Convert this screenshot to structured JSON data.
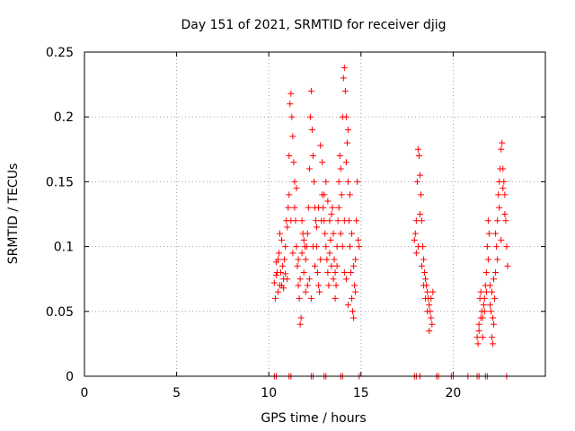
{
  "chart_data": {
    "type": "scatter",
    "title": "Day 151 of 2021, SRMTID for receiver djig",
    "xlabel": "GPS time / hours",
    "ylabel": "SRMTID / TECUs",
    "xlim": [
      0,
      25
    ],
    "ylim": [
      0,
      0.25
    ],
    "xticks": [
      0,
      5,
      10,
      15,
      20
    ],
    "xtick_labels": [
      "0",
      "5",
      "10",
      "15",
      "20"
    ],
    "yticks": [
      0,
      0.05,
      0.1,
      0.15,
      0.2,
      0.25
    ],
    "ytick_labels": [
      "0",
      "0.05",
      "0.1",
      "0.15",
      "0.2",
      "0.25"
    ],
    "grid": true,
    "marker": "+",
    "color": "#ff0000",
    "series": [
      {
        "name": "SRMTID",
        "points": [
          [
            10.3,
            0.072
          ],
          [
            10.35,
            0.06
          ],
          [
            10.4,
            0.078
          ],
          [
            10.45,
            0.08
          ],
          [
            10.5,
            0.065
          ],
          [
            10.55,
            0.095
          ],
          [
            10.6,
            0.11
          ],
          [
            10.65,
            0.08
          ],
          [
            10.7,
            0.07
          ],
          [
            10.75,
            0.085
          ],
          [
            10.8,
            0.075
          ],
          [
            10.85,
            0.09
          ],
          [
            10.9,
            0.1
          ],
          [
            10.95,
            0.12
          ],
          [
            10.4,
            0.088
          ],
          [
            10.5,
            0.09
          ],
          [
            10.6,
            0.07
          ],
          [
            10.7,
            0.105
          ],
          [
            10.8,
            0.068
          ],
          [
            10.9,
            0.079
          ],
          [
            11.0,
            0.115
          ],
          [
            11.05,
            0.13
          ],
          [
            11.1,
            0.17
          ],
          [
            11.15,
            0.21
          ],
          [
            11.2,
            0.218
          ],
          [
            11.25,
            0.2
          ],
          [
            11.3,
            0.185
          ],
          [
            11.35,
            0.165
          ],
          [
            11.4,
            0.15
          ],
          [
            11.45,
            0.12
          ],
          [
            11.5,
            0.1
          ],
          [
            11.55,
            0.085
          ],
          [
            11.6,
            0.07
          ],
          [
            11.65,
            0.06
          ],
          [
            11.7,
            0.04
          ],
          [
            11.75,
            0.045
          ],
          [
            11.8,
            0.095
          ],
          [
            11.85,
            0.11
          ],
          [
            11.9,
            0.105
          ],
          [
            11.95,
            0.1
          ],
          [
            11.1,
            0.14
          ],
          [
            11.2,
            0.12
          ],
          [
            11.3,
            0.095
          ],
          [
            11.4,
            0.13
          ],
          [
            11.5,
            0.145
          ],
          [
            11.6,
            0.09
          ],
          [
            11.7,
            0.075
          ],
          [
            11.8,
            0.12
          ],
          [
            11.9,
            0.08
          ],
          [
            11.0,
            0.075
          ],
          [
            12.0,
            0.09
          ],
          [
            12.05,
            0.1
          ],
          [
            12.1,
            0.11
          ],
          [
            12.15,
            0.13
          ],
          [
            12.2,
            0.16
          ],
          [
            12.25,
            0.2
          ],
          [
            12.3,
            0.22
          ],
          [
            12.35,
            0.19
          ],
          [
            12.4,
            0.17
          ],
          [
            12.45,
            0.15
          ],
          [
            12.5,
            0.13
          ],
          [
            12.55,
            0.12
          ],
          [
            12.6,
            0.1
          ],
          [
            12.65,
            0.08
          ],
          [
            12.7,
            0.07
          ],
          [
            12.75,
            0.065
          ],
          [
            12.8,
            0.09
          ],
          [
            12.85,
            0.12
          ],
          [
            12.9,
            0.14
          ],
          [
            12.95,
            0.13
          ],
          [
            12.2,
            0.075
          ],
          [
            12.3,
            0.06
          ],
          [
            12.4,
            0.1
          ],
          [
            12.5,
            0.085
          ],
          [
            12.6,
            0.115
          ],
          [
            12.7,
            0.13
          ],
          [
            12.8,
            0.178
          ],
          [
            12.9,
            0.165
          ],
          [
            12.1,
            0.07
          ],
          [
            12.0,
            0.065
          ],
          [
            13.0,
            0.12
          ],
          [
            13.05,
            0.11
          ],
          [
            13.1,
            0.1
          ],
          [
            13.15,
            0.09
          ],
          [
            13.2,
            0.08
          ],
          [
            13.25,
            0.07
          ],
          [
            13.3,
            0.095
          ],
          [
            13.35,
            0.105
          ],
          [
            13.4,
            0.125
          ],
          [
            13.45,
            0.13
          ],
          [
            13.5,
            0.11
          ],
          [
            13.55,
            0.09
          ],
          [
            13.6,
            0.08
          ],
          [
            13.65,
            0.07
          ],
          [
            13.7,
            0.1
          ],
          [
            13.75,
            0.12
          ],
          [
            13.8,
            0.15
          ],
          [
            13.85,
            0.17
          ],
          [
            13.9,
            0.16
          ],
          [
            13.95,
            0.14
          ],
          [
            13.1,
            0.15
          ],
          [
            13.2,
            0.135
          ],
          [
            13.3,
            0.12
          ],
          [
            13.4,
            0.085
          ],
          [
            13.5,
            0.075
          ],
          [
            13.6,
            0.06
          ],
          [
            13.7,
            0.085
          ],
          [
            13.8,
            0.13
          ],
          [
            13.9,
            0.11
          ],
          [
            13.0,
            0.14
          ],
          [
            14.0,
            0.2
          ],
          [
            14.05,
            0.23
          ],
          [
            14.1,
            0.238
          ],
          [
            14.15,
            0.22
          ],
          [
            14.2,
            0.2
          ],
          [
            14.25,
            0.18
          ],
          [
            14.3,
            0.15
          ],
          [
            14.35,
            0.12
          ],
          [
            14.4,
            0.1
          ],
          [
            14.45,
            0.08
          ],
          [
            14.5,
            0.06
          ],
          [
            14.55,
            0.05
          ],
          [
            14.6,
            0.045
          ],
          [
            14.65,
            0.07
          ],
          [
            14.7,
            0.09
          ],
          [
            14.75,
            0.12
          ],
          [
            14.8,
            0.15
          ],
          [
            14.85,
            0.105
          ],
          [
            14.9,
            0.1
          ],
          [
            14.1,
            0.12
          ],
          [
            14.2,
            0.165
          ],
          [
            14.3,
            0.19
          ],
          [
            14.4,
            0.14
          ],
          [
            14.5,
            0.11
          ],
          [
            14.6,
            0.085
          ],
          [
            14.7,
            0.065
          ],
          [
            14.0,
            0.1
          ],
          [
            14.1,
            0.08
          ],
          [
            14.2,
            0.075
          ],
          [
            14.3,
            0.055
          ],
          [
            17.9,
            0.105
          ],
          [
            17.95,
            0.11
          ],
          [
            18.0,
            0.12
          ],
          [
            18.05,
            0.15
          ],
          [
            18.1,
            0.175
          ],
          [
            18.15,
            0.17
          ],
          [
            18.2,
            0.155
          ],
          [
            18.25,
            0.14
          ],
          [
            18.3,
            0.12
          ],
          [
            18.35,
            0.1
          ],
          [
            18.4,
            0.09
          ],
          [
            18.45,
            0.08
          ],
          [
            18.5,
            0.075
          ],
          [
            18.55,
            0.07
          ],
          [
            18.6,
            0.065
          ],
          [
            18.65,
            0.06
          ],
          [
            18.7,
            0.055
          ],
          [
            18.75,
            0.05
          ],
          [
            18.8,
            0.045
          ],
          [
            18.85,
            0.04
          ],
          [
            18.1,
            0.1
          ],
          [
            18.2,
            0.125
          ],
          [
            18.3,
            0.085
          ],
          [
            18.4,
            0.07
          ],
          [
            18.5,
            0.06
          ],
          [
            18.6,
            0.05
          ],
          [
            18.7,
            0.035
          ],
          [
            18.8,
            0.06
          ],
          [
            18.9,
            0.065
          ],
          [
            18.0,
            0.095
          ],
          [
            21.3,
            0.03
          ],
          [
            21.35,
            0.025
          ],
          [
            21.4,
            0.04
          ],
          [
            21.45,
            0.06
          ],
          [
            21.5,
            0.065
          ],
          [
            21.55,
            0.05
          ],
          [
            21.6,
            0.045
          ],
          [
            21.65,
            0.055
          ],
          [
            21.7,
            0.06
          ],
          [
            21.75,
            0.07
          ],
          [
            21.8,
            0.08
          ],
          [
            21.85,
            0.1
          ],
          [
            21.9,
            0.12
          ],
          [
            21.95,
            0.11
          ],
          [
            21.4,
            0.035
          ],
          [
            21.5,
            0.045
          ],
          [
            21.6,
            0.03
          ],
          [
            21.7,
            0.05
          ],
          [
            21.8,
            0.065
          ],
          [
            21.9,
            0.09
          ],
          [
            22.0,
            0.07
          ],
          [
            22.05,
            0.05
          ],
          [
            22.1,
            0.03
          ],
          [
            22.15,
            0.025
          ],
          [
            22.2,
            0.04
          ],
          [
            22.25,
            0.06
          ],
          [
            22.3,
            0.08
          ],
          [
            22.35,
            0.1
          ],
          [
            22.4,
            0.12
          ],
          [
            22.45,
            0.14
          ],
          [
            22.5,
            0.15
          ],
          [
            22.55,
            0.16
          ],
          [
            22.6,
            0.175
          ],
          [
            22.65,
            0.18
          ],
          [
            22.7,
            0.16
          ],
          [
            22.75,
            0.15
          ],
          [
            22.8,
            0.14
          ],
          [
            22.85,
            0.12
          ],
          [
            22.9,
            0.1
          ],
          [
            22.95,
            0.085
          ],
          [
            22.1,
            0.065
          ],
          [
            22.2,
            0.075
          ],
          [
            22.3,
            0.11
          ],
          [
            22.4,
            0.09
          ],
          [
            22.5,
            0.13
          ],
          [
            22.6,
            0.105
          ],
          [
            22.7,
            0.145
          ],
          [
            22.8,
            0.125
          ],
          [
            22.0,
            0.055
          ],
          [
            22.15,
            0.045
          ]
        ],
        "zero_points": [
          10.3,
          10.4,
          11.1,
          11.2,
          12.3,
          12.4,
          13.0,
          13.1,
          13.9,
          14.0,
          14.9,
          17.9,
          18.0,
          18.2,
          19.1,
          19.2,
          19.9,
          20.0,
          20.8,
          21.3,
          21.4,
          21.75,
          21.85,
          22.9
        ]
      }
    ]
  }
}
